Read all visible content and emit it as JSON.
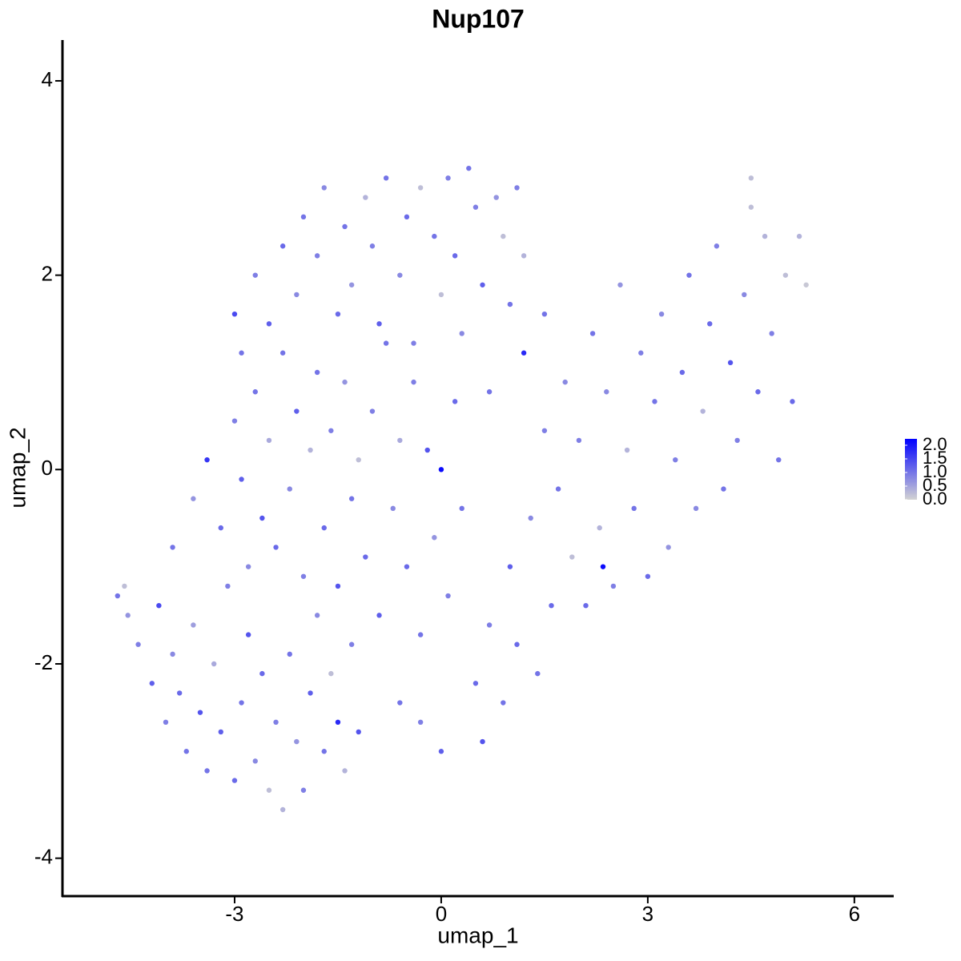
{
  "chart_data": {
    "type": "scatter",
    "title": "Nup107",
    "x_label": "umap_1",
    "y_label": "umap_2",
    "xlim": [
      -5.5,
      6.56
    ],
    "ylim": [
      -4.39,
      4.42
    ],
    "xticks": [
      -3,
      0,
      3,
      6
    ],
    "yticks": [
      -4,
      -2,
      0,
      2,
      4
    ],
    "colors": [
      "#d3d3d3",
      "#0000ff"
    ],
    "colorlim": [
      0,
      2.0
    ],
    "colorticks": [
      {
        "value": 0,
        "label": "0.0"
      },
      {
        "value": 0.5,
        "label": "0.5"
      },
      {
        "value": 1,
        "label": "1.0"
      },
      {
        "value": 1.5,
        "label": "1.5"
      },
      {
        "value": 2,
        "label": "2.0"
      }
    ],
    "x": [
      -4.7,
      -4.6,
      -4.55,
      -4.4,
      -4.2,
      -4.1,
      -4.0,
      -3.9,
      -3.8,
      -3.7,
      -3.6,
      -3.5,
      -3.4,
      -3.3,
      -3.2,
      -3.1,
      -3.0,
      -2.9,
      -2.8,
      -2.7,
      -2.6,
      -2.5,
      -2.4,
      -2.3,
      -2.2,
      -2.1,
      -2.0,
      -1.9,
      -1.8,
      -1.7,
      -1.6,
      -1.5,
      -1.4,
      -1.3,
      -1.2,
      -3.9,
      -3.6,
      -3.4,
      -3.2,
      -3.0,
      -2.9,
      -2.8,
      -2.7,
      -2.6,
      -2.5,
      -2.4,
      -2.3,
      -2.2,
      -2.1,
      -2.0,
      -1.9,
      -1.8,
      -1.7,
      -1.6,
      -1.5,
      -1.4,
      -1.3,
      -1.2,
      -1.1,
      -1.0,
      -0.9,
      -0.8,
      -0.7,
      -0.6,
      -0.5,
      -0.4,
      -0.3,
      -0.2,
      -0.1,
      0.0,
      0.1,
      0.2,
      0.3,
      -3.0,
      -2.9,
      -2.7,
      -2.5,
      -2.3,
      -2.1,
      -2.0,
      -1.8,
      -1.7,
      -1.5,
      -1.4,
      -1.3,
      -1.1,
      -1.0,
      -0.9,
      -0.8,
      -0.6,
      -0.5,
      -0.4,
      -0.3,
      -0.1,
      0.0,
      0.1,
      0.2,
      0.3,
      0.4,
      0.5,
      0.6,
      0.8,
      0.9,
      1.0,
      1.1,
      1.2,
      0.5,
      0.6,
      0.7,
      0.9,
      1.0,
      1.1,
      1.3,
      1.4,
      1.5,
      1.6,
      1.7,
      1.8,
      1.9,
      2.0,
      2.1,
      2.2,
      2.3,
      2.35,
      2.4,
      2.5,
      2.6,
      2.7,
      2.8,
      2.9,
      3.0,
      3.1,
      3.2,
      3.3,
      3.4,
      3.5,
      3.6,
      3.7,
      3.8,
      3.9,
      4.0,
      4.1,
      4.2,
      4.3,
      4.4,
      4.5,
      4.6,
      4.7,
      4.8,
      4.9,
      5.0,
      5.1,
      5.2,
      5.3,
      4.5,
      1.5,
      1.2,
      0.7,
      0.0,
      -0.3,
      -0.6
    ],
    "y": [
      -1.3,
      -1.2,
      -1.5,
      -1.8,
      -2.2,
      -1.4,
      -2.6,
      -1.9,
      -2.3,
      -2.9,
      -1.6,
      -2.5,
      -3.1,
      -2.0,
      -2.7,
      -1.2,
      -3.2,
      -2.4,
      -1.7,
      -3.0,
      -2.1,
      -3.3,
      -2.6,
      -3.5,
      -1.9,
      -2.8,
      -3.3,
      -2.3,
      -1.5,
      -2.9,
      -2.1,
      -2.6,
      -3.1,
      -1.8,
      -2.7,
      -0.8,
      -0.3,
      0.1,
      -0.6,
      0.5,
      -0.1,
      -1.0,
      0.8,
      -0.5,
      0.3,
      -0.8,
      1.2,
      -0.2,
      0.6,
      -1.1,
      0.2,
      1.0,
      -0.6,
      0.4,
      -1.2,
      0.9,
      -0.3,
      0.1,
      -0.9,
      0.6,
      -1.5,
      1.3,
      -0.4,
      0.3,
      -1.0,
      0.9,
      -1.7,
      0.2,
      -0.7,
      0.0,
      -1.3,
      0.7,
      -0.4,
      1.6,
      1.2,
      2.0,
      1.5,
      2.3,
      1.8,
      2.6,
      2.2,
      2.9,
      1.6,
      2.5,
      1.9,
      2.8,
      2.3,
      1.5,
      3.0,
      2.0,
      2.6,
      1.3,
      2.9,
      2.4,
      1.8,
      3.0,
      2.2,
      1.4,
      3.1,
      2.7,
      1.9,
      2.8,
      2.4,
      1.7,
      2.9,
      2.2,
      -2.2,
      -2.8,
      -1.6,
      -2.4,
      -1.0,
      -1.8,
      -0.5,
      -2.1,
      0.4,
      -1.4,
      -0.2,
      0.9,
      -0.9,
      0.3,
      -1.4,
      1.4,
      -0.6,
      -1.0,
      0.8,
      -1.2,
      1.9,
      0.2,
      -0.4,
      1.2,
      -1.1,
      0.7,
      1.6,
      -0.8,
      0.1,
      1.0,
      2.0,
      -0.4,
      0.6,
      1.5,
      2.3,
      -0.2,
      1.1,
      0.3,
      1.8,
      2.7,
      0.8,
      2.4,
      1.4,
      0.1,
      2.0,
      0.7,
      2.4,
      1.9,
      3.0,
      1.6,
      1.2,
      0.8,
      -2.9,
      -2.6,
      -2.4
    ],
    "expression": [
      0.9,
      0.2,
      0.6,
      0.8,
      1.1,
      1.3,
      0.8,
      0.7,
      1.0,
      0.9,
      0.5,
      1.2,
      0.9,
      0.4,
      1.1,
      0.8,
      1.0,
      0.9,
      1.2,
      0.7,
      1.0,
      0.2,
      0.8,
      0.3,
      0.9,
      0.6,
      0.8,
      1.1,
      0.7,
      0.9,
      0.2,
      1.6,
      0.3,
      0.8,
      1.2,
      0.9,
      0.6,
      1.5,
      1.0,
      0.8,
      1.1,
      0.7,
      0.9,
      1.2,
      0.4,
      1.0,
      0.9,
      0.7,
      1.1,
      0.8,
      0.3,
      0.9,
      1.0,
      0.8,
      1.2,
      0.6,
      0.9,
      0.2,
      1.0,
      0.8,
      1.1,
      0.9,
      0.7,
      0.4,
      1.0,
      0.8,
      0.9,
      1.2,
      0.6,
      1.9,
      0.8,
      1.0,
      0.9,
      1.3,
      0.9,
      0.8,
      1.1,
      1.0,
      0.7,
      0.9,
      0.8,
      0.7,
      1.0,
      0.9,
      0.6,
      0.3,
      0.8,
      1.1,
      0.9,
      0.7,
      1.0,
      0.8,
      0.2,
      0.9,
      0.2,
      0.8,
      1.0,
      0.7,
      0.9,
      0.8,
      1.1,
      0.6,
      0.2,
      0.9,
      0.8,
      0.3,
      1.0,
      1.2,
      0.8,
      0.9,
      1.1,
      1.0,
      0.7,
      0.9,
      0.8,
      1.0,
      0.9,
      0.7,
      0.2,
      0.8,
      1.0,
      0.9,
      0.3,
      1.9,
      0.7,
      0.8,
      0.6,
      0.3,
      0.9,
      0.8,
      1.0,
      0.9,
      0.7,
      0.6,
      0.8,
      1.0,
      0.9,
      0.7,
      0.3,
      1.0,
      0.8,
      0.9,
      1.2,
      0.8,
      0.7,
      0.2,
      1.0,
      0.3,
      0.8,
      0.9,
      0.2,
      1.0,
      0.3,
      0.1,
      0.2,
      0.9,
      1.6,
      0.9,
      1.1,
      0.8,
      0.9
    ]
  }
}
